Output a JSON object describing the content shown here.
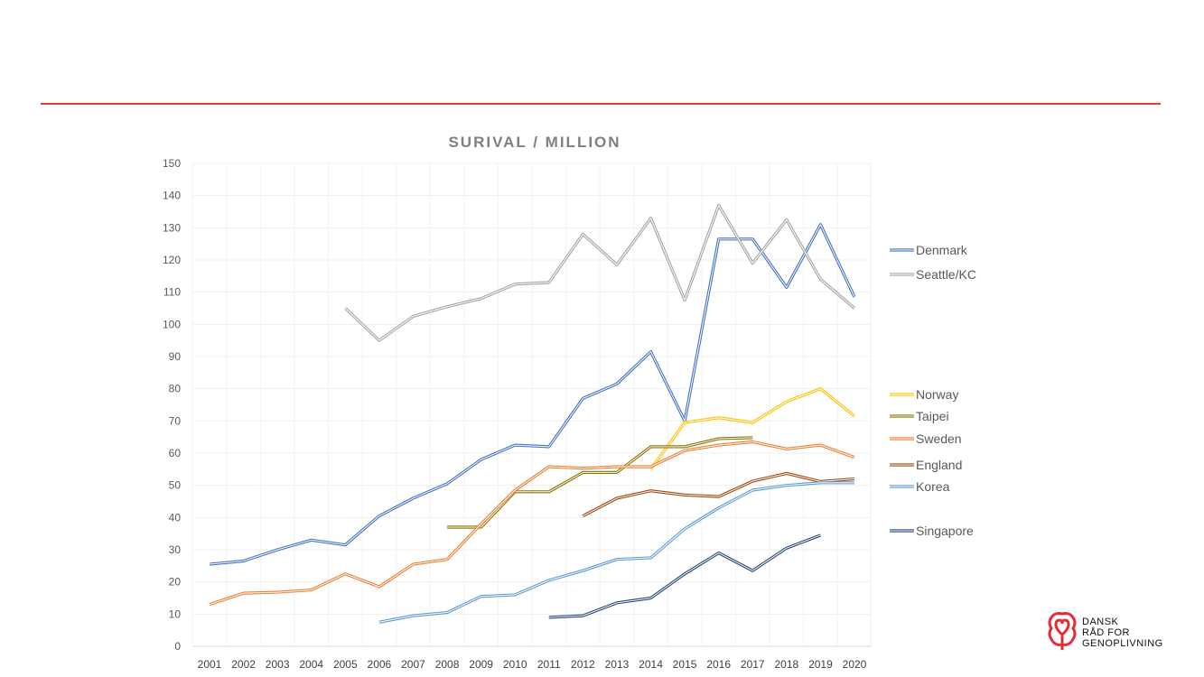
{
  "chart_data": {
    "type": "line",
    "title": "SURIVAL / MILLION",
    "xlabel": "",
    "ylabel": "",
    "ylim": [
      0,
      150
    ],
    "yticks": [
      0,
      10,
      20,
      30,
      40,
      50,
      60,
      70,
      80,
      90,
      100,
      110,
      120,
      130,
      140,
      150
    ],
    "grid": true,
    "legend_position": "right",
    "categories": [
      "2001",
      "2002",
      "2003",
      "2004",
      "2005",
      "2006",
      "2007",
      "2008",
      "2009",
      "2010",
      "2011",
      "2012",
      "2013",
      "2014",
      "2015",
      "2016",
      "2017",
      "2018",
      "2019",
      "2020"
    ],
    "series": [
      {
        "name": "Denmark",
        "color": "#4472C4",
        "values": [
          25.5,
          26.5,
          30,
          33,
          31.5,
          40.5,
          46,
          50.5,
          58,
          62.5,
          62,
          77,
          81.5,
          91.5,
          70,
          126.5,
          126.5,
          111.5,
          131,
          108.5
        ]
      },
      {
        "name": "Seattle/KC",
        "color": "#A5A5A5",
        "values": [
          null,
          null,
          null,
          null,
          105,
          95,
          102.5,
          105.5,
          108,
          112.5,
          113,
          128,
          118.5,
          133,
          107.5,
          137,
          119,
          132.5,
          114,
          105
        ]
      },
      {
        "name": "Norway",
        "color": "#FFC000",
        "values": [
          null,
          null,
          null,
          null,
          null,
          null,
          null,
          null,
          null,
          null,
          null,
          null,
          null,
          55,
          69.5,
          71,
          69.5,
          76,
          80,
          71.5
        ]
      },
      {
        "name": "Taipei",
        "color": "#8C7300",
        "values": [
          null,
          null,
          null,
          null,
          null,
          null,
          null,
          37,
          37,
          48,
          48,
          54,
          54,
          62,
          62,
          64.5,
          64.8,
          null,
          null,
          null
        ]
      },
      {
        "name": "Sweden",
        "color": "#ED7D31",
        "values": [
          13,
          16.5,
          16.8,
          17.5,
          22.5,
          18.5,
          25.5,
          27,
          38,
          48.5,
          55.8,
          55.3,
          55.8,
          55.8,
          60.8,
          62.5,
          63.5,
          61.3,
          62.5,
          58.7
        ]
      },
      {
        "name": "England",
        "color": "#9E480E",
        "values": [
          null,
          null,
          null,
          null,
          null,
          null,
          null,
          null,
          null,
          null,
          null,
          40.5,
          46,
          48.3,
          47,
          46.5,
          51.3,
          53.7,
          51.2,
          52
        ]
      },
      {
        "name": "Korea",
        "color": "#5B9BD5",
        "values": [
          null,
          null,
          null,
          null,
          null,
          7.5,
          9.5,
          10.5,
          15.5,
          16,
          20.5,
          23.5,
          27,
          27.5,
          36.5,
          43,
          48.5,
          50,
          50.8,
          50.8
        ]
      },
      {
        "name": "Singapore",
        "color": "#264478",
        "values": [
          null,
          null,
          null,
          null,
          null,
          null,
          null,
          null,
          null,
          null,
          9,
          9.5,
          13.5,
          15,
          22.5,
          29,
          23.5,
          30.5,
          34.5,
          null
        ]
      }
    ]
  },
  "logo": {
    "line1": "DANSK",
    "line2": "RÅD FOR",
    "line3": "GENOPLIVNING"
  },
  "colors": {
    "accent_line": "#e8392e",
    "logo": "#e0303a"
  }
}
